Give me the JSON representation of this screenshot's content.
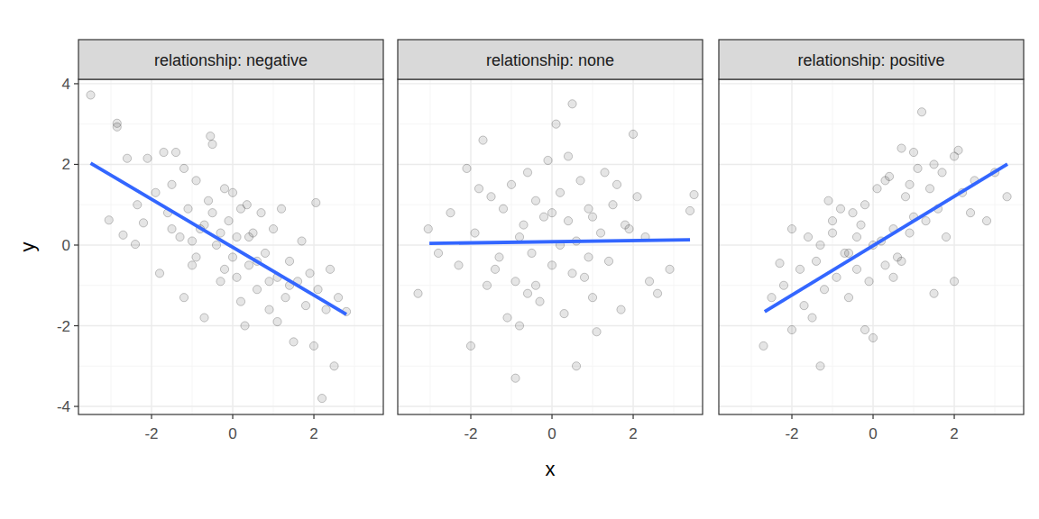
{
  "chart_data": [
    {
      "type": "scatter",
      "title": "relationship: negative",
      "y_label": "y",
      "xlim": [
        -3.8,
        3.71
      ],
      "ylim": [
        -4.2,
        4.11
      ],
      "xticks": [
        -2,
        0,
        2
      ],
      "yticks": [
        -4,
        -2,
        0,
        2,
        4
      ],
      "grid": true,
      "tick_labels": true,
      "series": [
        {
          "type": "scatter",
          "color": "#000000",
          "marker": "circle",
          "x": [
            -3.5,
            -2.85,
            -2.85,
            -3.05,
            -2.7,
            -2.6,
            -2.4,
            -2.35,
            -2.2,
            -2.1,
            -1.9,
            -1.7,
            -1.6,
            -1.8,
            -1.5,
            -1.4,
            -1.3,
            -1.2,
            -1.1,
            -1.0,
            -0.9,
            -0.8,
            -0.7,
            -0.6,
            -0.55,
            -0.5,
            -0.4,
            -0.3,
            -0.2,
            -0.1,
            0.0,
            0.1,
            0.2,
            0.3,
            0.35,
            0.4,
            0.5,
            0.6,
            0.7,
            0.8,
            0.9,
            1.0,
            1.1,
            1.2,
            1.3,
            1.4,
            1.5,
            1.6,
            1.7,
            1.8,
            1.9,
            2.0,
            2.05,
            2.1,
            2.2,
            2.3,
            2.4,
            2.5,
            2.6,
            2.8,
            -1.2,
            -0.9,
            0.2,
            -1.5,
            1.1,
            0.6,
            -0.3,
            0.0,
            -0.7,
            -0.2,
            0.4,
            -1.0,
            0.9,
            1.4,
            -0.5,
            0.1
          ],
          "values": [
            3.72,
            3.02,
            2.93,
            0.62,
            0.25,
            2.15,
            0.02,
            1.0,
            0.55,
            2.15,
            1.3,
            2.3,
            0.8,
            -0.7,
            1.5,
            2.3,
            0.2,
            1.9,
            0.9,
            -0.5,
            1.6,
            0.4,
            -1.8,
            1.1,
            2.7,
            2.5,
            0.0,
            -0.9,
            1.4,
            0.6,
            -0.3,
            0.2,
            -1.4,
            -2.0,
            1.0,
            -0.5,
            0.3,
            -1.1,
            0.8,
            -0.2,
            -1.6,
            0.4,
            -0.8,
            0.9,
            -1.3,
            -0.4,
            -2.4,
            -0.9,
            0.1,
            -1.5,
            -0.7,
            -2.5,
            1.05,
            -1.1,
            -3.8,
            -1.6,
            -0.6,
            -3.0,
            -1.3,
            -1.65,
            -1.3,
            -0.3,
            0.9,
            0.4,
            -1.9,
            -0.4,
            0.3,
            1.3,
            0.5,
            -0.6,
            0.2,
            0.1,
            -0.9,
            -1.0,
            0.8,
            -0.8
          ]
        },
        {
          "type": "line",
          "color": "#3366FF",
          "x": [
            -3.5,
            2.8
          ],
          "values": [
            2.03,
            -1.72
          ]
        }
      ]
    },
    {
      "type": "scatter",
      "title": "relationship: none",
      "x_label": "x",
      "xlim": [
        -3.8,
        3.71
      ],
      "ylim": [
        -4.2,
        4.11
      ],
      "xticks": [
        -2,
        0,
        2
      ],
      "yticks": [
        -4,
        -2,
        0,
        2,
        4
      ],
      "grid": true,
      "tick_labels": "x",
      "series": [
        {
          "type": "scatter",
          "color": "#000000",
          "marker": "circle",
          "x": [
            0.5,
            0.1,
            -1.7,
            2.0,
            -3.05,
            3.5,
            3.4,
            -3.3,
            -2.0,
            -0.9,
            0.6,
            2.9,
            2.6,
            1.1,
            -0.8,
            -2.5,
            -2.3,
            -2.1,
            -1.9,
            -1.6,
            -1.5,
            -1.3,
            -1.2,
            -1.0,
            -0.9,
            -0.7,
            -0.6,
            -0.5,
            -0.4,
            -0.3,
            -0.2,
            -0.1,
            0.0,
            0.2,
            0.3,
            0.4,
            0.6,
            0.7,
            0.8,
            0.9,
            1.0,
            1.2,
            1.3,
            1.4,
            1.5,
            1.7,
            1.8,
            2.1,
            2.3,
            -1.1,
            -0.4,
            0.2,
            0.5,
            1.0,
            -0.8,
            1.6,
            -1.4,
            0.0,
            -2.8,
            2.4,
            0.9,
            -0.6,
            1.9,
            -1.8,
            0.4
          ],
          "values": [
            3.5,
            3.0,
            2.6,
            2.75,
            0.4,
            1.25,
            0.85,
            -1.2,
            -2.5,
            -3.3,
            -3.0,
            -0.6,
            -1.2,
            -2.15,
            -2.0,
            0.8,
            -0.5,
            1.9,
            0.3,
            -1.0,
            1.2,
            -0.3,
            0.9,
            1.5,
            -0.9,
            0.5,
            1.8,
            -0.2,
            1.1,
            -1.4,
            0.7,
            2.1,
            -0.5,
            1.3,
            -1.7,
            0.6,
            0.1,
            1.6,
            -0.8,
            0.9,
            -1.3,
            0.3,
            1.8,
            -0.4,
            1.0,
            -1.6,
            0.5,
            1.2,
            0.2,
            -1.8,
            -1.0,
            0.0,
            -0.7,
            0.7,
            0.2,
            1.5,
            -0.6,
            0.8,
            -0.2,
            -0.9,
            -0.3,
            -1.2,
            0.4,
            1.4,
            2.2
          ]
        },
        {
          "type": "line",
          "color": "#3366FF",
          "x": [
            -3.02,
            3.4
          ],
          "values": [
            0.04,
            0.13
          ]
        }
      ]
    },
    {
      "type": "scatter",
      "title": "relationship: positive",
      "xlim": [
        -3.8,
        3.71
      ],
      "ylim": [
        -4.2,
        4.11
      ],
      "xticks": [
        -2,
        0,
        2
      ],
      "yticks": [
        -4,
        -2,
        0,
        2,
        4
      ],
      "grid": true,
      "tick_labels": "x",
      "series": [
        {
          "type": "scatter",
          "color": "#000000",
          "marker": "circle",
          "x": [
            1.2,
            -2.7,
            -2.0,
            -1.5,
            -1.3,
            -0.2,
            0.0,
            2.0,
            2.8,
            3.3,
            3.0,
            -2.3,
            -2.0,
            -1.8,
            2.1,
            2.0,
            0.7,
            1.0,
            1.5,
            -2.5,
            -2.2,
            -1.7,
            -1.6,
            -1.4,
            -1.2,
            -1.1,
            -1.0,
            -0.9,
            -0.8,
            -0.7,
            -0.6,
            -0.5,
            -0.4,
            -0.3,
            -0.1,
            0.1,
            0.2,
            0.3,
            0.4,
            0.5,
            0.6,
            0.8,
            0.9,
            1.1,
            1.3,
            1.4,
            1.6,
            1.7,
            1.8,
            2.2,
            2.4,
            -0.2,
            0.5,
            0.0,
            -0.6,
            1.0,
            -1.0,
            0.3,
            0.9,
            -1.3,
            1.5,
            0.7,
            -0.4,
            2.5
          ],
          "values": [
            3.3,
            -2.5,
            -2.1,
            -1.8,
            -3.0,
            -2.1,
            -2.3,
            -0.9,
            0.6,
            1.2,
            1.8,
            -0.45,
            0.4,
            -0.6,
            2.35,
            2.2,
            2.4,
            2.3,
            -1.2,
            -1.3,
            -1.0,
            -1.5,
            0.2,
            -0.4,
            -1.1,
            1.1,
            0.3,
            -0.8,
            0.9,
            -0.2,
            -1.3,
            0.8,
            -0.6,
            0.5,
            -0.9,
            1.4,
            0.1,
            -0.5,
            1.7,
            0.4,
            -0.3,
            1.2,
            0.3,
            1.9,
            0.6,
            1.4,
            0.9,
            1.8,
            0.2,
            1.3,
            0.8,
            1.0,
            -0.8,
            0.0,
            -0.2,
            0.7,
            0.6,
            1.6,
            1.5,
            0.0,
            2.0,
            -0.4,
            0.2,
            1.6
          ]
        },
        {
          "type": "line",
          "color": "#3366FF",
          "x": [
            -2.67,
            3.31
          ],
          "values": [
            -1.65,
            2.01
          ]
        }
      ]
    }
  ]
}
